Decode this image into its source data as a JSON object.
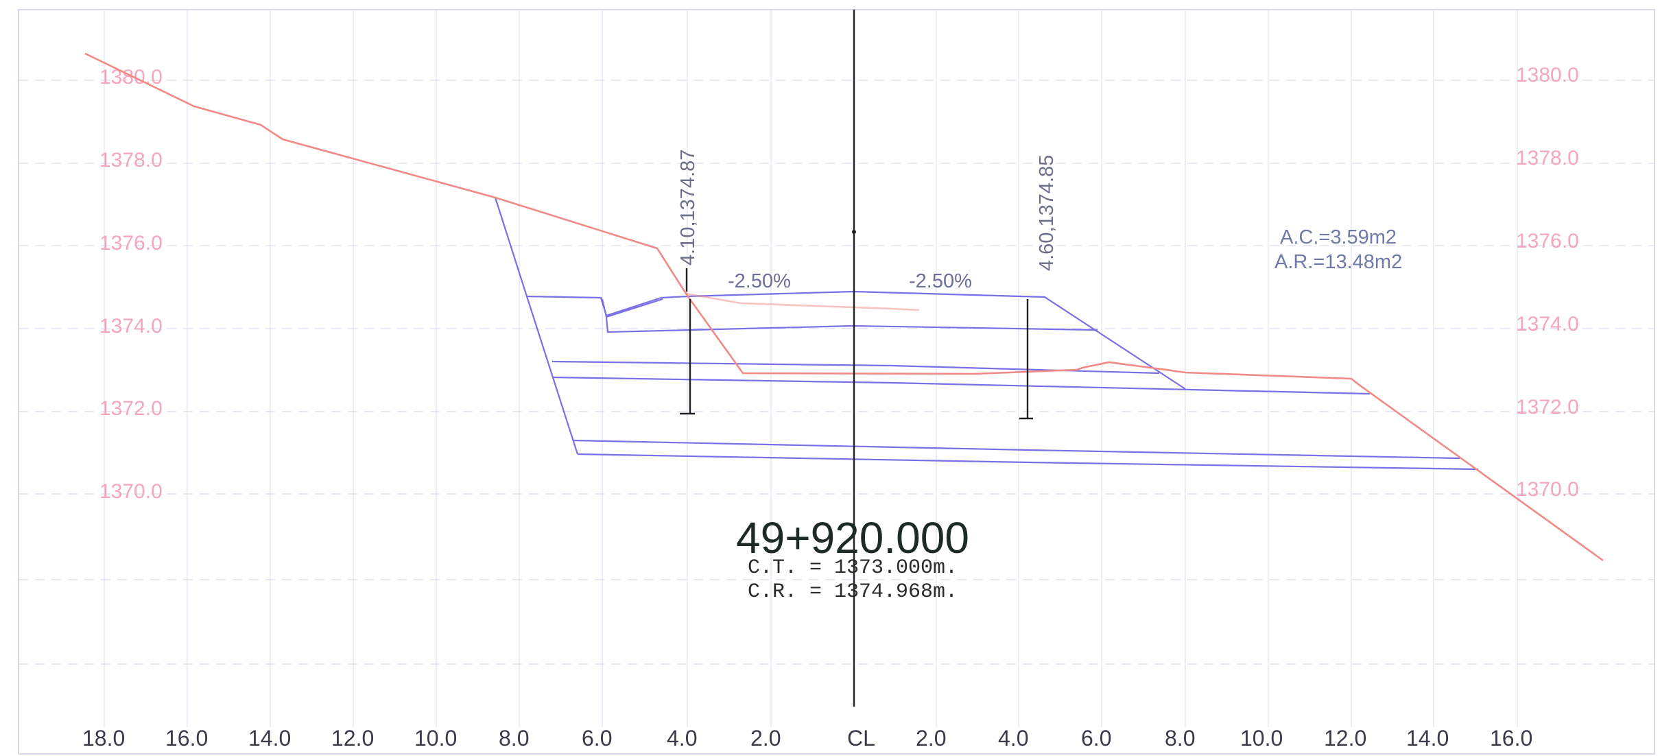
{
  "section": {
    "station": "49+920.000",
    "ct_label": "C.T.  =  1373.000m.",
    "cr_label": "C.R.  =  1374.968m."
  },
  "areas": {
    "cut": "A.C.=3.59m2",
    "fill": "A.R.=13.48m2"
  },
  "annotations": {
    "left_point": "4.10,1374.87",
    "right_point": "4.60,1374.85",
    "left_slope": "-2.50%",
    "right_slope": "-2.50%"
  },
  "axes": {
    "centerline_symbol": "CL",
    "elevation_labels_left": [
      "1380.0",
      "1378.0",
      "1376.0",
      "1374.0",
      "1372.0",
      "1370.0"
    ],
    "elevation_labels_right": [
      "1380.0",
      "1378.0",
      "1376.0",
      "1374.0",
      "1372.0",
      "1370.0"
    ],
    "offset_labels_left": [
      "18.0",
      "16.0",
      "14.0",
      "12.0",
      "10.0",
      "8.0",
      "6.0",
      "4.0",
      "2.0"
    ],
    "offset_labels_right": [
      "2.0",
      "4.0",
      "6.0",
      "8.0",
      "10.0",
      "12.0",
      "14.0",
      "16.0"
    ]
  },
  "colors": {
    "ground_line": "#f08a86",
    "design_line": "#7a70e6",
    "elevation_text": "#f3a6bd",
    "grid": "#d9dbef"
  }
}
